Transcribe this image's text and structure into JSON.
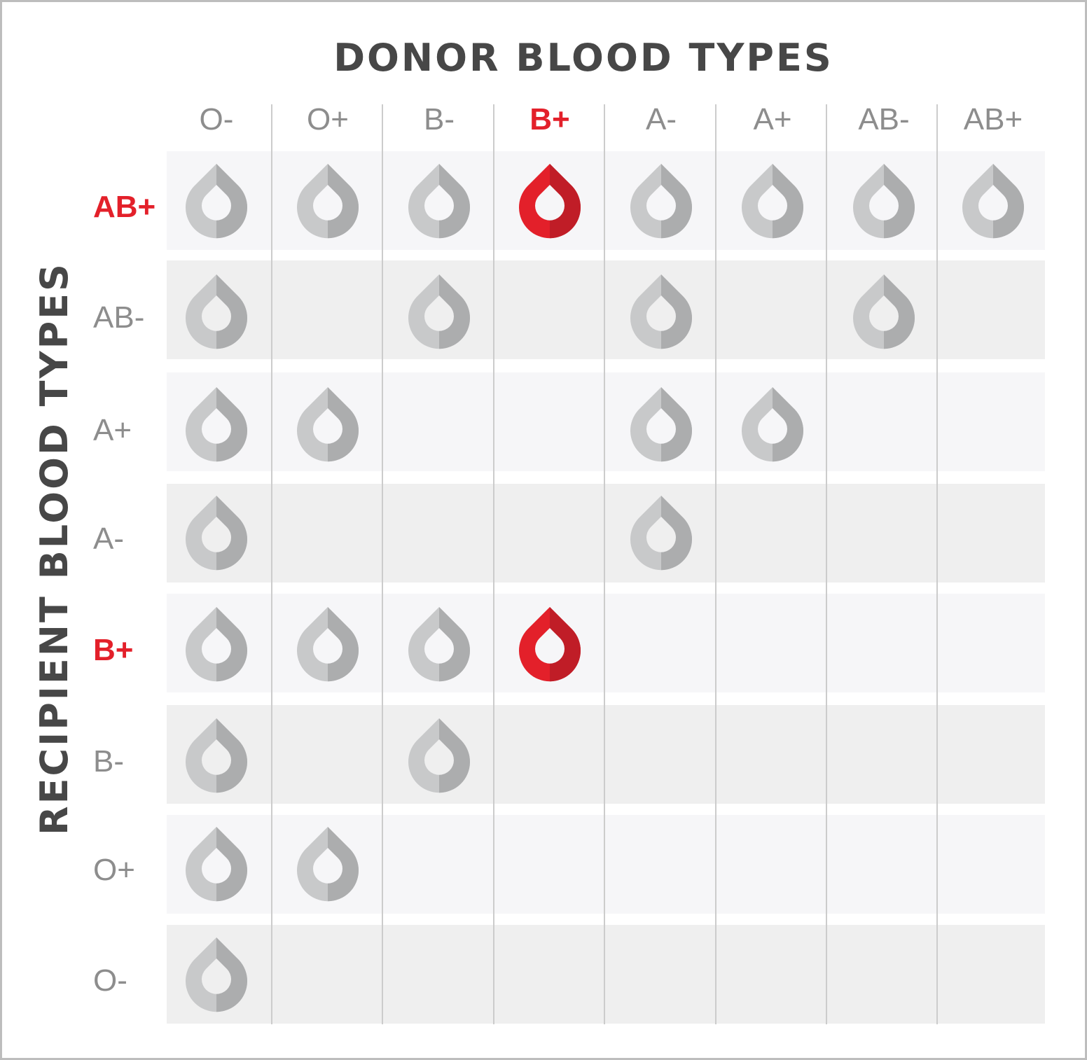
{
  "titles": {
    "donor": "DONOR BLOOD TYPES",
    "recipient": "RECIPIENT BLOOD TYPES"
  },
  "donor_types": [
    "O-",
    "O+",
    "B-",
    "B+",
    "A-",
    "A+",
    "AB-",
    "AB+"
  ],
  "recipient_types": [
    "AB+",
    "AB-",
    "A+",
    "A-",
    "B+",
    "B-",
    "O+",
    "O-"
  ],
  "highlight": {
    "donor": "B+",
    "recipients": [
      "AB+",
      "B+"
    ]
  },
  "compatibility": {
    "AB+": [
      "O-",
      "O+",
      "B-",
      "B+",
      "A-",
      "A+",
      "AB-",
      "AB+"
    ],
    "AB-": [
      "O-",
      "B-",
      "A-",
      "AB-"
    ],
    "A+": [
      "O-",
      "O+",
      "A-",
      "A+"
    ],
    "A-": [
      "O-",
      "A-"
    ],
    "B+": [
      "O-",
      "O+",
      "B-",
      "B+"
    ],
    "B-": [
      "O-",
      "B-"
    ],
    "O+": [
      "O-",
      "O+"
    ],
    "O-": [
      "O-"
    ]
  },
  "colors": {
    "drop_gray_left": "#c8c9ca",
    "drop_gray_right": "#acadae",
    "drop_red_left": "#e3202a",
    "drop_red_right": "#c01d27",
    "highlight_text": "#e3202a",
    "label_text": "#8d8d8d",
    "title_text": "#474747"
  },
  "icons": {
    "compatible_mark": "blood-drop-icon"
  }
}
